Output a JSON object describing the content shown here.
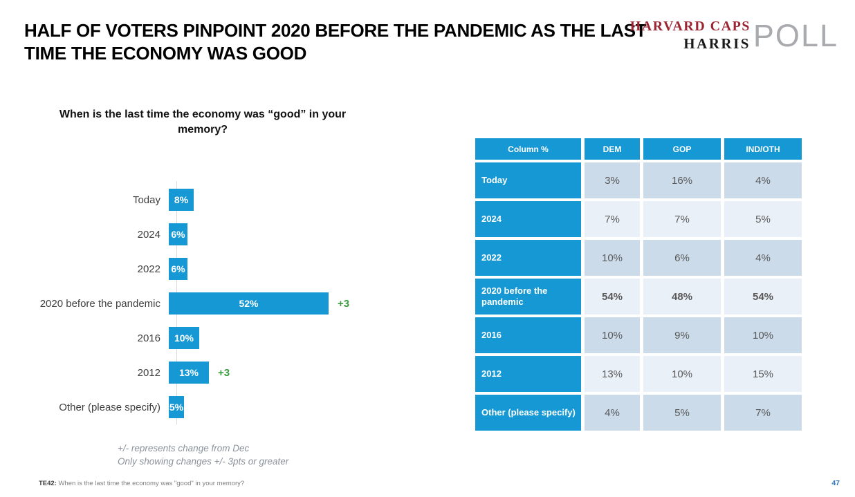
{
  "header": {
    "title": "HALF OF VOTERS PINPOINT 2020 BEFORE THE PANDEMIC AS THE LAST TIME THE ECONOMY WAS GOOD",
    "logo": {
      "line1": "HARVARD CAPS",
      "line2": "HARRIS",
      "poll": "POLL"
    }
  },
  "chart_data": {
    "type": "bar",
    "orientation": "horizontal",
    "title": "When is the last time the economy was “good” in your memory?",
    "categories": [
      "Today",
      "2024",
      "2022",
      "2020 before the pandemic",
      "2016",
      "2012",
      "Other (please specify)"
    ],
    "values": [
      8,
      6,
      6,
      52,
      10,
      13,
      5
    ],
    "value_labels": [
      "8%",
      "6%",
      "6%",
      "52%",
      "10%",
      "13%",
      "5%"
    ],
    "deltas": [
      "",
      "",
      "",
      "+3",
      "",
      "+3",
      ""
    ],
    "xlim": [
      0,
      55
    ],
    "bar_color": "#1598d4",
    "delta_color": "#3a9d3c",
    "grid": false,
    "legend": "none"
  },
  "footnotes": [
    "+/- represents change from Dec",
    "Only showing changes +/- 3pts or greater"
  ],
  "table": {
    "header": [
      "Column %",
      "DEM",
      "GOP",
      "IND/OTH"
    ],
    "rows": [
      {
        "label": "Today",
        "values": [
          "3%",
          "16%",
          "4%"
        ],
        "bold": false,
        "shade": "dark"
      },
      {
        "label": "2024",
        "values": [
          "7%",
          "7%",
          "5%"
        ],
        "bold": false,
        "shade": "light"
      },
      {
        "label": "2022",
        "values": [
          "10%",
          "6%",
          "4%"
        ],
        "bold": false,
        "shade": "dark"
      },
      {
        "label": "2020 before the pandemic",
        "values": [
          "54%",
          "48%",
          "54%"
        ],
        "bold": true,
        "shade": "light"
      },
      {
        "label": "2016",
        "values": [
          "10%",
          "9%",
          "10%"
        ],
        "bold": false,
        "shade": "dark"
      },
      {
        "label": "2012",
        "values": [
          "13%",
          "10%",
          "15%"
        ],
        "bold": false,
        "shade": "light"
      },
      {
        "label": "Other (please specify)",
        "values": [
          "4%",
          "5%",
          "7%"
        ],
        "bold": false,
        "shade": "dark"
      }
    ],
    "colors": {
      "header_bg": "#1598d4",
      "row_label_bg": "#1598d4",
      "cell_dark": "#cbdbea",
      "cell_light": "#eaf0f8",
      "cell_text": "#595959"
    }
  },
  "footer": {
    "code": "TE42:",
    "text": "When is the last time the economy was \"good\" in your memory?",
    "page_number": "47"
  }
}
